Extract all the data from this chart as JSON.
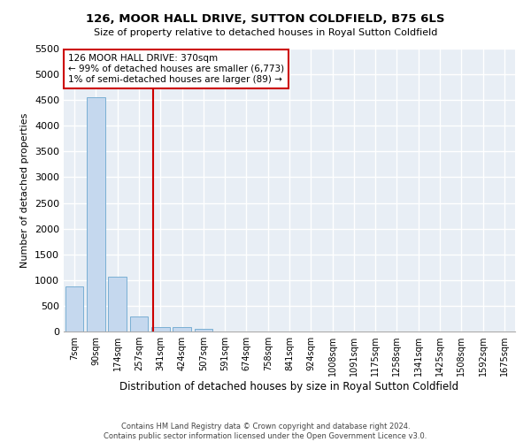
{
  "title": "126, MOOR HALL DRIVE, SUTTON COLDFIELD, B75 6LS",
  "subtitle": "Size of property relative to detached houses in Royal Sutton Coldfield",
  "xlabel": "Distribution of detached houses by size in Royal Sutton Coldfield",
  "ylabel": "Number of detached properties",
  "bar_color": "#c5d8ee",
  "bar_edge_color": "#7aafd4",
  "background_color": "#e8eef5",
  "grid_color": "#ffffff",
  "bins": [
    "7sqm",
    "90sqm",
    "174sqm",
    "257sqm",
    "341sqm",
    "424sqm",
    "507sqm",
    "591sqm",
    "674sqm",
    "758sqm",
    "841sqm",
    "924sqm",
    "1008sqm",
    "1091sqm",
    "1175sqm",
    "1258sqm",
    "1341sqm",
    "1425sqm",
    "1508sqm",
    "1592sqm",
    "1675sqm"
  ],
  "values": [
    880,
    4560,
    1060,
    290,
    90,
    80,
    55,
    0,
    0,
    0,
    0,
    0,
    0,
    0,
    0,
    0,
    0,
    0,
    0,
    0,
    0
  ],
  "ylim": [
    0,
    5500
  ],
  "yticks": [
    0,
    500,
    1000,
    1500,
    2000,
    2500,
    3000,
    3500,
    4000,
    4500,
    5000,
    5500
  ],
  "red_line_x": 3.65,
  "annotation_text": "126 MOOR HALL DRIVE: 370sqm\n← 99% of detached houses are smaller (6,773)\n1% of semi-detached houses are larger (89) →",
  "annotation_box_color": "#ffffff",
  "annotation_box_edge_color": "#cc0000",
  "footer_line1": "Contains HM Land Registry data © Crown copyright and database right 2024.",
  "footer_line2": "Contains public sector information licensed under the Open Government Licence v3.0."
}
